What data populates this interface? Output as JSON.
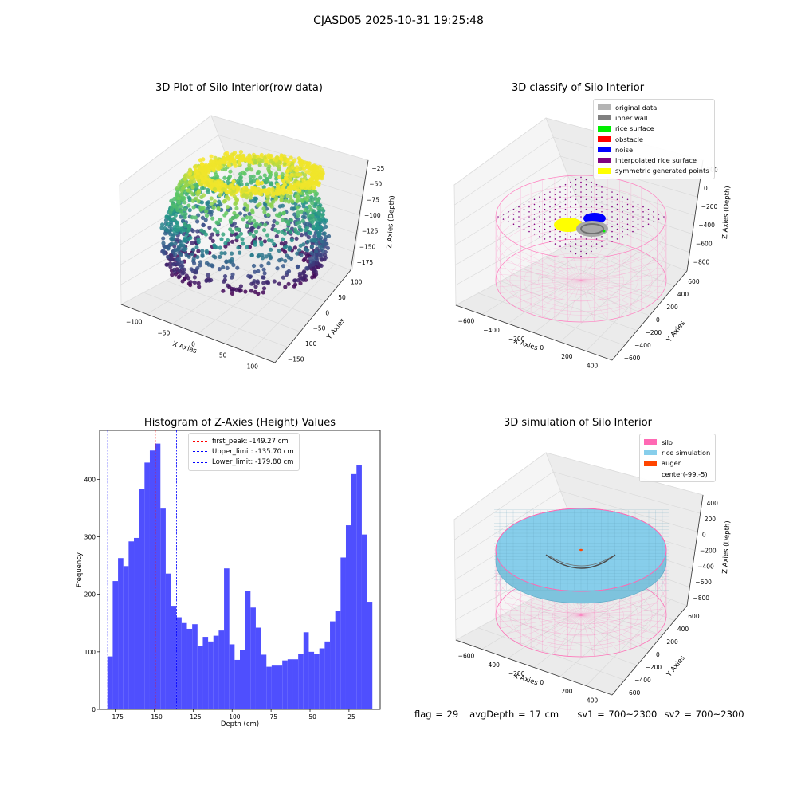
{
  "figure": {
    "suptitle": "CJASD05 2025-10-31 19:25:48",
    "footer": {
      "flag": "flag = 29",
      "avg_depth": "avgDepth = 17 cm",
      "sv1": "sv1 = 700~2300",
      "sv2": "sv2 = 700~2300"
    }
  },
  "colors": {
    "histogram_bar": "#4f4ffe",
    "peak_line": "#ff0000",
    "limit_line": "#0000ff",
    "silo_wire": "#ff69b4",
    "rice_simulation": "#87ceeb",
    "auger": "#ff4500"
  },
  "chart_data": [
    {
      "type": "scatter3d",
      "title": "3D Plot of Silo Interior(row data)",
      "xlabel": "X Axies",
      "ylabel": "Y Axies",
      "zlabel": "Z Axies (Depth)",
      "x_ticks": [
        "−100",
        "−50",
        "0",
        "50",
        "100"
      ],
      "y_ticks": [
        "−150",
        "−100",
        "−50",
        "0",
        "50",
        "100"
      ],
      "z_ticks": [
        "−25",
        "−50",
        "−75",
        "−100",
        "−125",
        "−150",
        "−175"
      ],
      "colormap": "viridis",
      "x_range": [
        -130,
        130
      ],
      "y_range": [
        -150,
        120
      ],
      "z_range": [
        -185,
        -10
      ]
    },
    {
      "type": "scatter3d",
      "title": "3D classify of Silo Interior",
      "xlabel": "X Axies",
      "ylabel": "Y Axies",
      "zlabel": "Z Axies (Depth)",
      "x_ticks": [
        "−600",
        "−400",
        "−200",
        "0",
        "200",
        "400"
      ],
      "y_ticks": [
        "−600",
        "−400",
        "−200",
        "0",
        "200",
        "400",
        "600"
      ],
      "z_ticks": [
        "200",
        "0",
        "−200",
        "−400",
        "−600",
        "−800"
      ],
      "z_ticks_partial": "0",
      "legend": [
        {
          "label": "original data",
          "color": "#b4b4b4"
        },
        {
          "label": "inner wall",
          "color": "#808080"
        },
        {
          "label": "rice surface",
          "color": "#00ee00"
        },
        {
          "label": "obstacle",
          "color": "#ff0000"
        },
        {
          "label": "noise",
          "color": "#0000ff"
        },
        {
          "label": "interpolated rice surface",
          "color": "#800080"
        },
        {
          "label": "symmetric generated points",
          "color": "#ffff00"
        }
      ]
    },
    {
      "type": "bar",
      "title": "Histogram of Z-Axies (Height) Values",
      "xlabel": "Depth (cm)",
      "ylabel": "Frequency",
      "xlim": [
        -185,
        -5
      ],
      "ylim": [
        0,
        485
      ],
      "x_ticks": [
        -175,
        -150,
        -125,
        -100,
        -75,
        -50,
        -25
      ],
      "y_ticks": [
        0,
        100,
        200,
        300,
        400
      ],
      "bin_start": -180,
      "bin_width": 3.4,
      "values": [
        92,
        223,
        263,
        249,
        292,
        298,
        383,
        429,
        450,
        462,
        349,
        236,
        180,
        160,
        150,
        140,
        148,
        110,
        126,
        118,
        128,
        137,
        245,
        113,
        86,
        103,
        206,
        177,
        142,
        95,
        74,
        76,
        76,
        85,
        87,
        87,
        96,
        134,
        100,
        96,
        106,
        118,
        153,
        171,
        264,
        320,
        409,
        424,
        304,
        187
      ],
      "vlines": [
        {
          "label": "first_peak: -149.27 cm",
          "x": -149.27,
          "color": "#ff0000"
        },
        {
          "label": "Upper_limit: -135.70 cm",
          "x": -135.7,
          "color": "#0000ff"
        },
        {
          "label": "Lower_limit: -179.80 cm",
          "x": -179.8,
          "color": "#0000ff"
        }
      ]
    },
    {
      "type": "surface3d",
      "title": "3D simulation of Silo Interior",
      "xlabel": "X Axies",
      "ylabel": "Y Axies",
      "zlabel": "Z Axies (Depth)",
      "x_ticks": [
        "−600",
        "−400",
        "−200",
        "0",
        "200",
        "400"
      ],
      "y_ticks": [
        "−600",
        "−400",
        "−200",
        "0",
        "200",
        "400",
        "600"
      ],
      "z_ticks": [
        "400",
        "200",
        "0",
        "−200",
        "−400",
        "−600",
        "−800"
      ],
      "legend": [
        {
          "label": "silo",
          "color": "#ff69b4"
        },
        {
          "label": "rice simulation",
          "color": "#87ceeb"
        },
        {
          "label": "auger",
          "color": "#ff4500"
        },
        {
          "label": "center(-99,-5)",
          "color": "#ffffff"
        }
      ]
    }
  ]
}
